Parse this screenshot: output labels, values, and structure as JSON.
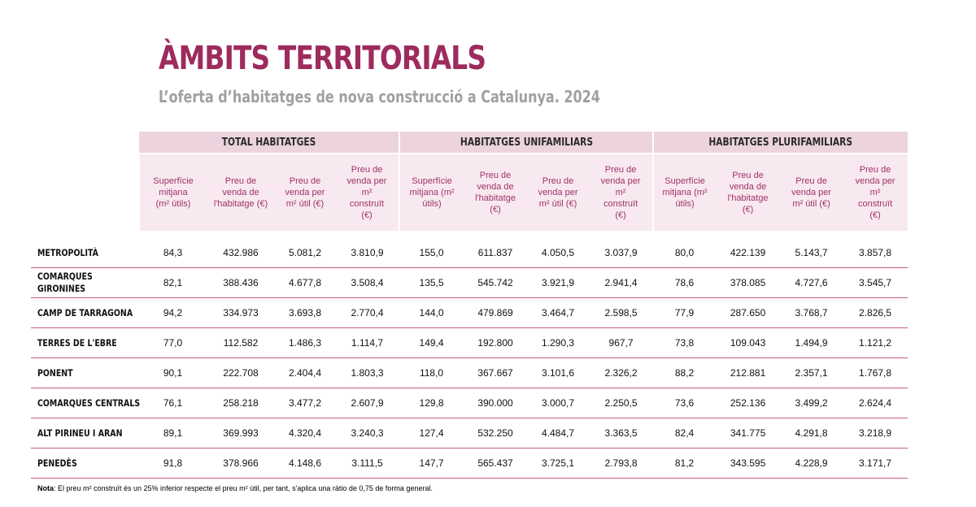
{
  "title": "ÀMBITS TERRITORIALS",
  "subtitle": "L’oferta d’habitatges de nova construcció a Catalunya. 2024",
  "groups": [
    "TOTAL HABITATGES",
    "HABITATGES UNIFAMILIARS",
    "HABITATGES PLURIFAMILIARS"
  ],
  "column_headers": {
    "total": [
      [
        "Superfície",
        "mitjana",
        "(m² útils)"
      ],
      [
        "Preu de",
        "venda de",
        "l'habitatge (€)"
      ],
      [
        "Preu de",
        "venda per",
        "m² útil (€)"
      ],
      [
        "Preu de",
        "venda per",
        "m²",
        "construït",
        "(€)"
      ]
    ],
    "unifamiliars": [
      [
        "Superfície",
        "mitjana (m²",
        "útils)"
      ],
      [
        "Preu de",
        "venda de",
        "l'habitatge",
        "(€)"
      ],
      [
        "Preu de",
        "venda per",
        "m² útil (€)"
      ],
      [
        "Preu de",
        "venda per",
        "m²",
        "construït",
        "(€)"
      ]
    ],
    "plurifamiliars": [
      [
        "Superfície",
        "mitjana (m²",
        "útils)"
      ],
      [
        "Preu de",
        "venda de",
        "l'habitatge",
        "(€)"
      ],
      [
        "Preu de",
        "venda per",
        "m² útil (€)"
      ],
      [
        "Preu de",
        "venda per",
        "m²",
        "construït",
        "(€)"
      ]
    ]
  },
  "rows": [
    {
      "name": [
        "METROPOLITÀ"
      ],
      "values": [
        "84,3",
        "432.986",
        "5.081,2",
        "3.810,9",
        "155,0",
        "611.837",
        "4.050,5",
        "3.037,9",
        "80,0",
        "422.139",
        "5.143,7",
        "3.857,8"
      ]
    },
    {
      "name": [
        "COMARQUES",
        "GIRONINES"
      ],
      "values": [
        "82,1",
        "388.436",
        "4.677,8",
        "3.508,4",
        "135,5",
        "545.742",
        "3.921,9",
        "2.941,4",
        "78,6",
        "378.085",
        "4.727,6",
        "3.545,7"
      ]
    },
    {
      "name": [
        "CAMP DE TARRAGONA"
      ],
      "values": [
        "94,2",
        "334.973",
        "3.693,8",
        "2.770,4",
        "144,0",
        "479.869",
        "3.464,7",
        "2.598,5",
        "77,9",
        "287.650",
        "3.768,7",
        "2.826,5"
      ]
    },
    {
      "name": [
        "TERRES DE L'EBRE"
      ],
      "values": [
        "77,0",
        "112.582",
        "1.486,3",
        "1.114,7",
        "149,4",
        "192.800",
        "1.290,3",
        "967,7",
        "73,8",
        "109.043",
        "1.494,9",
        "1.121,2"
      ]
    },
    {
      "name": [
        "PONENT"
      ],
      "values": [
        "90,1",
        "222.708",
        "2.404,4",
        "1.803,3",
        "118,0",
        "367.667",
        "3.101,6",
        "2.326,2",
        "88,2",
        "212.881",
        "2.357,1",
        "1.767,8"
      ]
    },
    {
      "name": [
        "COMARQUES CENTRALS"
      ],
      "values": [
        "76,1",
        "258.218",
        "3.477,2",
        "2.607,9",
        "129,8",
        "390.000",
        "3.000,7",
        "2.250,5",
        "73,6",
        "252.136",
        "3.499,2",
        "2.624,4"
      ]
    },
    {
      "name": [
        "ALT PIRINEU I ARAN"
      ],
      "values": [
        "89,1",
        "369.993",
        "4.320,4",
        "3.240,3",
        "127,4",
        "532.250",
        "4.484,7",
        "3.363,5",
        "82,4",
        "341.775",
        "4.291,8",
        "3.218,9"
      ]
    },
    {
      "name": [
        "PENEDÈS"
      ],
      "values": [
        "91,8",
        "378.966",
        "4.148,6",
        "3.111,5",
        "147,7",
        "565.437",
        "3.725,1",
        "2.793,8",
        "81,2",
        "343.595",
        "4.228,9",
        "3.171,7"
      ]
    }
  ],
  "note": {
    "label": "Nota",
    "text": ": El preu m² construït és un 25% inferior respecte el preu m² útil, per tant, s'aplica una ràtio de 0,75 de forma general."
  },
  "colors": {
    "title": "#9e2b5e",
    "subtitle": "#a0a0a0",
    "group_header_bg": "#ecd3de",
    "column_header_bg": "#f7e9ef",
    "column_header_text": "#a0316a",
    "row_divider": "#c45b87"
  }
}
